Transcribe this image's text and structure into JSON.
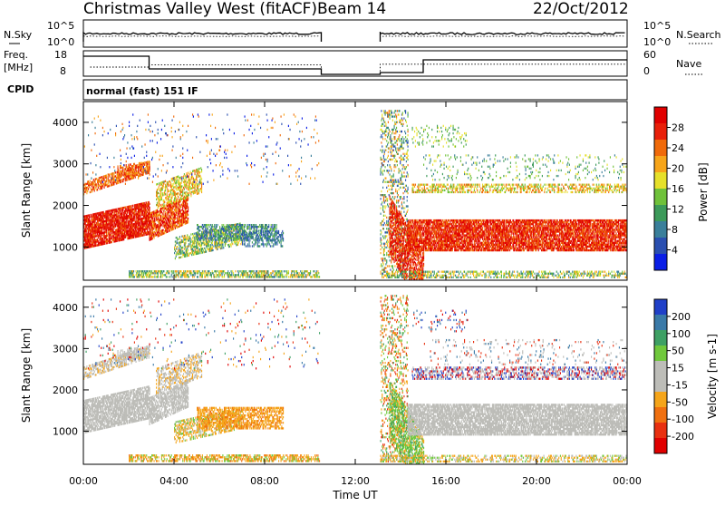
{
  "header": {
    "station": "Christmas Valley West (fitACF)",
    "beam": "Beam 14",
    "date": "22/Oct/2012"
  },
  "nsky_panel": {
    "left_label": "N.Sky",
    "right_label": "N.Search",
    "left_ticks": [
      "10^5",
      "10^0"
    ],
    "right_ticks": [
      "10^5",
      "10^0"
    ]
  },
  "freq_panel": {
    "left_label_1": "Freq.",
    "left_label_2": "[MHz]",
    "right_label": "Nave",
    "left_ticks": [
      "18",
      "8"
    ],
    "right_ticks": [
      "60",
      "0"
    ]
  },
  "cpid": {
    "label": "CPID",
    "value": "normal (fast) 151 IF"
  },
  "colors": {
    "power_scale": [
      "#0a1ee6",
      "#2a4fb0",
      "#3a7f9a",
      "#3c9a5a",
      "#6fc13a",
      "#e6e02a",
      "#f7a51a",
      "#f06a0a",
      "#e8200a",
      "#e00000"
    ],
    "velocity_scale": [
      "#2040c8",
      "#3a7aa8",
      "#3ea064",
      "#70c83c",
      "#bdbdb8",
      "#bdbdb8",
      "#f5a51a",
      "#f07010",
      "#e83010",
      "#e00000"
    ]
  },
  "chart_data": [
    {
      "type": "heatmap",
      "name": "power",
      "ylabel": "Slant Range [km]",
      "yticks": [
        "1000",
        "2000",
        "3000",
        "4000"
      ],
      "ylim": [
        200,
        4500
      ],
      "xlim": [
        0,
        24
      ],
      "colorbar_label": "Power [dB]",
      "colorbar_ticks": [
        "4",
        "8",
        "12",
        "16",
        "20",
        "24",
        "28"
      ],
      "colorbar_range": [
        0,
        30
      ]
    },
    {
      "type": "heatmap",
      "name": "velocity",
      "ylabel": "Slant Range [km]",
      "yticks": [
        "1000",
        "2000",
        "3000",
        "4000"
      ],
      "ylim": [
        200,
        4500
      ],
      "xlim": [
        0,
        24
      ],
      "colorbar_label": "Velocity [m s-1]",
      "colorbar_ticks": [
        "200",
        "100",
        "50",
        "15",
        "-15",
        "-50",
        "-100",
        "-200"
      ],
      "xlabel": "Time UT",
      "xticks": [
        "00:00",
        "04:00",
        "08:00",
        "12:00",
        "16:00",
        "20:00",
        "00:00"
      ]
    }
  ]
}
